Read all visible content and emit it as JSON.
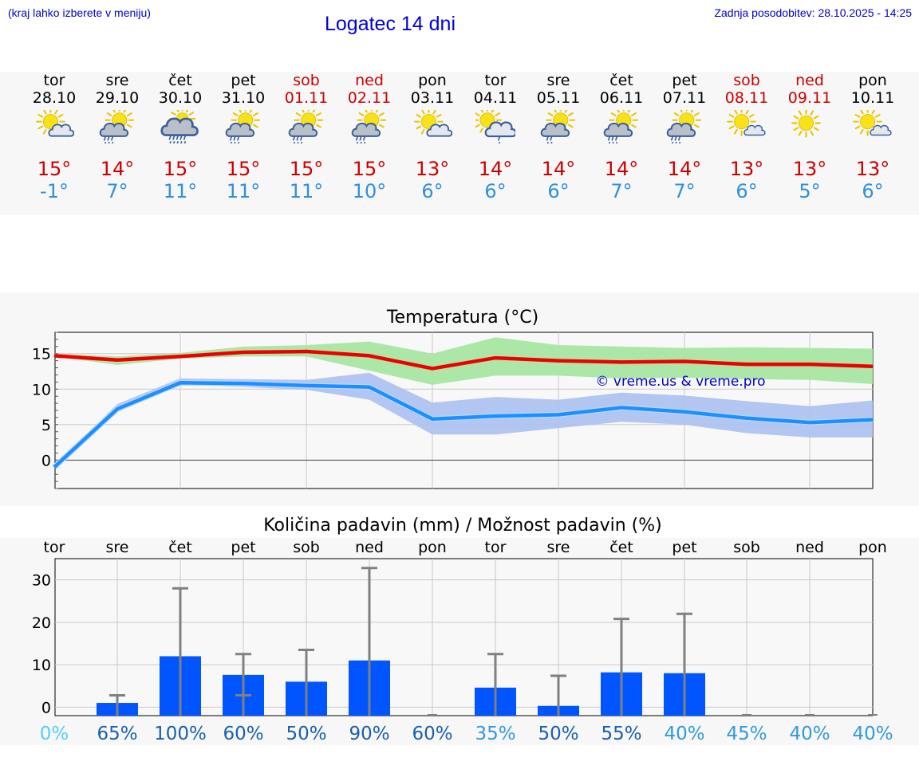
{
  "header": {
    "note": "(kraj lahko izberete v meniju)",
    "title": "Logatec 14 dni",
    "updated": "Zadnja posodobitev: 28.10.2025 - 14:25"
  },
  "days": [
    {
      "name": "tor",
      "date": "28.10",
      "weekend": false,
      "icon": "sun-cloud-icon",
      "max": "15°",
      "min": "-1°"
    },
    {
      "name": "sre",
      "date": "29.10",
      "weekend": false,
      "icon": "sun-cloud-rain-icon",
      "max": "14°",
      "min": "7°"
    },
    {
      "name": "čet",
      "date": "30.10",
      "weekend": false,
      "icon": "heavy-cloud-rain-icon",
      "max": "15°",
      "min": "11°"
    },
    {
      "name": "pet",
      "date": "31.10",
      "weekend": false,
      "icon": "sun-cloud-rain-icon",
      "max": "15°",
      "min": "11°"
    },
    {
      "name": "sob",
      "date": "01.11",
      "weekend": true,
      "icon": "sun-cloud-rain-icon",
      "max": "15°",
      "min": "11°"
    },
    {
      "name": "ned",
      "date": "02.11",
      "weekend": true,
      "icon": "sun-cloud-rain-icon",
      "max": "15°",
      "min": "10°"
    },
    {
      "name": "pon",
      "date": "03.11",
      "weekend": false,
      "icon": "sun-cloud-icon",
      "max": "13°",
      "min": "6°"
    },
    {
      "name": "tor",
      "date": "04.11",
      "weekend": false,
      "icon": "sun-big-cloud-rain-icon",
      "max": "14°",
      "min": "6°"
    },
    {
      "name": "sre",
      "date": "05.11",
      "weekend": false,
      "icon": "sun-cloud-light-rain-icon",
      "max": "14°",
      "min": "6°"
    },
    {
      "name": "čet",
      "date": "06.11",
      "weekend": false,
      "icon": "sun-cloud-rain-icon",
      "max": "14°",
      "min": "7°"
    },
    {
      "name": "pet",
      "date": "07.11",
      "weekend": false,
      "icon": "sun-cloud-rain-icon",
      "max": "14°",
      "min": "7°"
    },
    {
      "name": "sob",
      "date": "08.11",
      "weekend": true,
      "icon": "sun-small-cloud-icon",
      "max": "13°",
      "min": "6°"
    },
    {
      "name": "ned",
      "date": "09.11",
      "weekend": true,
      "icon": "sun-icon",
      "max": "13°",
      "min": "5°"
    },
    {
      "name": "pon",
      "date": "10.11",
      "weekend": false,
      "icon": "sun-small-cloud-icon",
      "max": "13°",
      "min": "6°"
    }
  ],
  "chart_data": [
    {
      "type": "line",
      "title": "Temperatura (°C)",
      "watermark": "© vreme.us & vreme.pro",
      "ylim": [
        -4,
        18
      ],
      "yticks": [
        0,
        5,
        10,
        15
      ],
      "x": [
        0,
        1,
        2,
        3,
        4,
        5,
        6,
        7,
        8,
        9,
        10,
        11,
        12,
        13
      ],
      "series": [
        {
          "name": "max",
          "color": "#ee0000",
          "values": [
            14.7,
            14.1,
            14.6,
            15.2,
            15.3,
            14.7,
            12.9,
            14.4,
            14.0,
            13.8,
            13.9,
            13.5,
            13.5,
            13.2
          ],
          "band_low": [
            14.6,
            13.4,
            14.3,
            14.6,
            14.6,
            12.6,
            10.6,
            11.9,
            11.9,
            11.5,
            11.6,
            11.4,
            11.3,
            10.7
          ],
          "band_high": [
            15.0,
            14.6,
            15.1,
            16.0,
            16.2,
            16.7,
            15.0,
            17.3,
            16.2,
            16.0,
            15.8,
            15.9,
            15.8,
            15.7
          ],
          "band_color": "#a8e6a3"
        },
        {
          "name": "min",
          "color": "#1e8fff",
          "values": [
            -1.0,
            7.2,
            10.9,
            10.8,
            10.5,
            10.3,
            5.8,
            6.2,
            6.4,
            7.4,
            6.8,
            5.9,
            5.3,
            5.7
          ],
          "band_low": [
            -1.2,
            6.8,
            10.6,
            10.3,
            9.9,
            8.5,
            3.6,
            3.6,
            4.5,
            5.4,
            5.0,
            3.8,
            3.2,
            3.2
          ],
          "band_high": [
            -0.8,
            7.9,
            11.5,
            11.4,
            11.3,
            12.3,
            8.1,
            8.9,
            8.5,
            9.5,
            9.1,
            8.3,
            7.6,
            8.4
          ],
          "band_color": "#aec3f0"
        }
      ]
    },
    {
      "type": "bar",
      "title": "Količina padavin (mm) / Možnost padavin (%)",
      "categories": [
        "tor",
        "sre",
        "čet",
        "pet",
        "sob",
        "ned",
        "pon",
        "tor",
        "sre",
        "čet",
        "pet",
        "sob",
        "ned",
        "pon"
      ],
      "ylim": [
        -2,
        35
      ],
      "yticks": [
        0,
        10,
        20,
        30
      ],
      "values": [
        0,
        1,
        12,
        7.6,
        6,
        11,
        0,
        4.6,
        0.3,
        8.2,
        8,
        0,
        0,
        0
      ],
      "err_low": [
        0,
        0,
        0,
        2.8,
        0,
        0,
        0,
        0,
        0,
        0,
        0,
        0,
        0,
        0
      ],
      "err_high": [
        0,
        2.8,
        28,
        12.5,
        13.5,
        32.8,
        0,
        12.5,
        7.4,
        20.8,
        22,
        0,
        0,
        0
      ],
      "probability": [
        "0%",
        "65%",
        "100%",
        "60%",
        "50%",
        "90%",
        "60%",
        "35%",
        "50%",
        "55%",
        "40%",
        "45%",
        "40%",
        "40%"
      ],
      "prob_colors": [
        "#55ccff",
        "#1a5fb0",
        "#1a5fb0",
        "#1a5fb0",
        "#1a5fb0",
        "#1a5fb0",
        "#1a5fb0",
        "#3399dd",
        "#1a5fb0",
        "#1a5fb0",
        "#3399dd",
        "#3399dd",
        "#3399dd",
        "#3399dd"
      ],
      "bar_color": "#0055ff",
      "err_color": "#808080"
    }
  ]
}
